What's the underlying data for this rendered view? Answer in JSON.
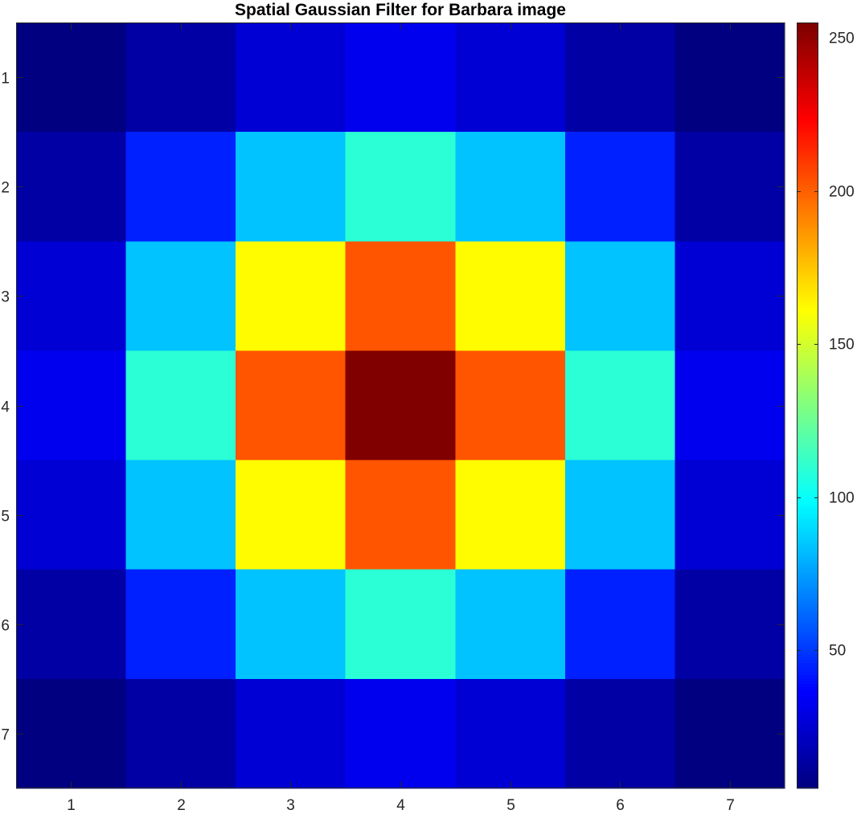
{
  "chart_data": {
    "type": "heatmap",
    "title": "Spatial Gaussian Filter for Barbara image",
    "xlabel": "",
    "ylabel": "",
    "x": [
      1,
      2,
      3,
      4,
      5,
      6,
      7
    ],
    "y": [
      1,
      2,
      3,
      4,
      5,
      6,
      7
    ],
    "x_tick_labels": [
      "1",
      "2",
      "3",
      "4",
      "5",
      "6",
      "7"
    ],
    "y_tick_labels": [
      "1",
      "2",
      "3",
      "4",
      "5",
      "6",
      "7"
    ],
    "xlim": [
      0.5,
      7.5
    ],
    "ylim": [
      0.5,
      7.5
    ],
    "y_direction": "reverse",
    "values": [
      [
        5,
        14,
        26,
        32,
        26,
        14,
        5
      ],
      [
        14,
        44,
        84,
        109,
        84,
        44,
        14
      ],
      [
        26,
        84,
        162,
        203,
        162,
        84,
        26
      ],
      [
        32,
        109,
        203,
        255,
        203,
        109,
        32
      ],
      [
        26,
        84,
        162,
        203,
        162,
        84,
        26
      ],
      [
        14,
        44,
        84,
        109,
        84,
        44,
        14
      ],
      [
        5,
        14,
        26,
        32,
        26,
        14,
        5
      ]
    ],
    "colormap": "jet",
    "clim": [
      5,
      255
    ],
    "colorbar": {
      "location": "right",
      "ticks": [
        50,
        100,
        150,
        200,
        250
      ],
      "tick_labels": [
        "50",
        "100",
        "150",
        "200",
        "250"
      ]
    },
    "grid": false
  }
}
